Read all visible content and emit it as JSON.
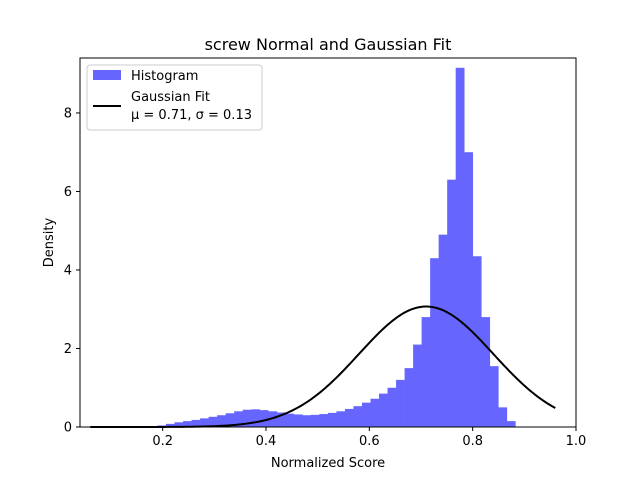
{
  "chart_data": {
    "type": "bar",
    "title": "screw Normal and Gaussian Fit",
    "xlabel": "Normalized Score",
    "ylabel": "Density",
    "xlim": [
      0.04,
      1.0
    ],
    "ylim": [
      0,
      9.4
    ],
    "x_ticks": [
      "0.2",
      "0.4",
      "0.6",
      "0.8",
      "1.0"
    ],
    "y_ticks": [
      "0",
      "2",
      "4",
      "6",
      "8"
    ],
    "x_tick_values": [
      0.2,
      0.4,
      0.6,
      0.8,
      1.0
    ],
    "y_tick_values": [
      0,
      2,
      4,
      6,
      8
    ],
    "legend_position": "upper-left",
    "colors": {
      "histogram": "#6666ff",
      "fit_line": "#000000"
    },
    "histogram": {
      "name": "Histogram",
      "bin_start": 0.19,
      "bin_width": 0.01649,
      "densities": [
        0.04,
        0.08,
        0.12,
        0.15,
        0.18,
        0.22,
        0.26,
        0.3,
        0.35,
        0.4,
        0.44,
        0.45,
        0.43,
        0.4,
        0.37,
        0.34,
        0.32,
        0.3,
        0.31,
        0.33,
        0.36,
        0.4,
        0.46,
        0.53,
        0.62,
        0.72,
        0.85,
        1.0,
        1.2,
        1.5,
        2.1,
        2.8,
        4.3,
        4.9,
        6.3,
        9.15,
        7.0,
        4.35,
        2.8,
        1.55,
        0.5,
        0.15
      ]
    },
    "gaussian_fit": {
      "name": "Gaussian Fit",
      "mu": 0.71,
      "sigma": 0.13,
      "x_range": [
        0.06,
        0.96
      ],
      "label_line2": "μ = 0.71,  σ = 0.13"
    }
  }
}
